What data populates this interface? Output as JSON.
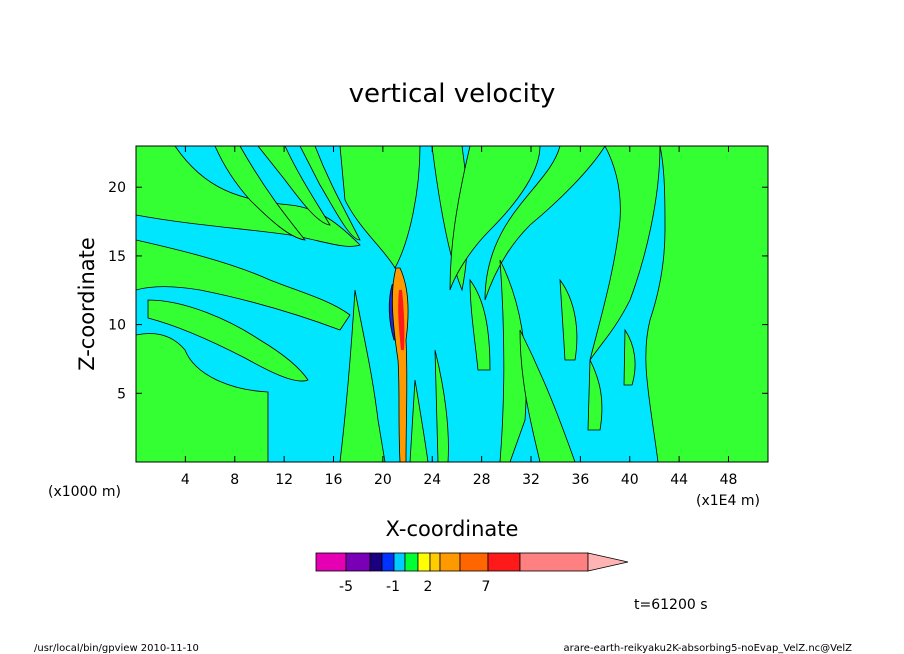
{
  "chart_data": {
    "type": "contour",
    "title": "vertical velocity",
    "xlabel": "X-coordinate",
    "ylabel": "Z-coordinate",
    "x_unit_label": "(x1E4 m)",
    "y_unit_label": "(x1000 m)",
    "xlim": [
      0,
      51.2
    ],
    "ylim": [
      0,
      23
    ],
    "x_ticks": [
      4,
      8,
      12,
      16,
      20,
      24,
      28,
      32,
      36,
      40,
      44,
      48
    ],
    "y_ticks": [
      5,
      10,
      15,
      20
    ],
    "x_tick_labels": [
      "4",
      "8",
      "12",
      "16",
      "20",
      "24",
      "28",
      "32",
      "36",
      "40",
      "44",
      "48"
    ],
    "y_tick_labels": [
      "5",
      "10",
      "15",
      "20"
    ],
    "color_levels": [
      "#e600b4",
      "#7a00b8",
      "#1a0080",
      "#0033ff",
      "#00ccff",
      "#00ff33",
      "#ffff00",
      "#ffcc00",
      "#ff9900",
      "#ff6600",
      "#ff1a1a",
      "#ff8080",
      "#ffb3b3"
    ],
    "colorbar_labels": [
      "-5",
      "-1",
      "2",
      "7"
    ],
    "background_colors": {
      "negative": "#00e6ff",
      "positive": "#33ff33"
    },
    "time_label": "t=61200 s"
  },
  "footer": {
    "left": "/usr/local/bin/gpview  2010-11-10",
    "right": "arare-earth-reikyaku2K-absorbing5-noEvap_VelZ.nc@VelZ"
  }
}
